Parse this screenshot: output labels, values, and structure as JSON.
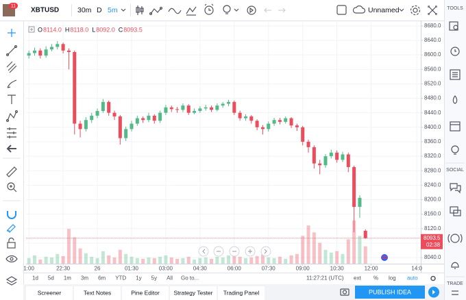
{
  "toolbar": {
    "avatar_badge": "11",
    "symbol": "XBTUSD",
    "intervals": [
      "30m",
      "D",
      "5m"
    ],
    "layout_name": "Unnamed"
  },
  "right_sidebar": {
    "sections": [
      "TOOLS",
      "SOCIAL",
      "TRADE"
    ]
  },
  "bottom_bar": {
    "ranges": [
      "1d",
      "5d",
      "1m",
      "3m",
      "6m",
      "YTD",
      "1y",
      "5y",
      "All"
    ],
    "goto": "Go to...",
    "clock": "11:27:21 (UTC)",
    "options": [
      "ext",
      "%",
      "log",
      "auto"
    ]
  },
  "tabs": [
    "Screener",
    "Text Notes",
    "Pine Editor",
    "Strategy Tester",
    "Trading Panel"
  ],
  "publish_button": "PUBLISH IDEA",
  "chart_data": {
    "type": "candlestick",
    "ohlc_legend": [
      {
        "label": "O",
        "value": "8114.0"
      },
      {
        "label": "H",
        "value": "8118.0"
      },
      {
        "label": "L",
        "value": "8092.0"
      },
      {
        "label": "C",
        "value": "8093.5"
      }
    ],
    "up_color": "#53b987",
    "down_color": "#eb4d5c",
    "open": [
      8598,
      8605,
      8612,
      8598,
      8615,
      8622,
      8630,
      8612,
      8608,
      8410,
      8395,
      8420,
      8432,
      8445,
      8470,
      8440,
      8430,
      8370,
      8395,
      8410,
      8425,
      8420,
      8432,
      8418,
      8440,
      8455,
      8450,
      8448,
      8460,
      8440,
      8445,
      8452,
      8455,
      8448,
      8460,
      8465,
      8470,
      8440,
      8425,
      8430,
      8418,
      8400,
      8395,
      8410,
      8420,
      8415,
      8425,
      8405,
      8400,
      8360,
      8345,
      8300,
      8295,
      8320,
      8330,
      8310,
      8325,
      8290,
      8180,
      8114
    ],
    "high": [
      8612,
      8620,
      8618,
      8624,
      8630,
      8638,
      8634,
      8618,
      8612,
      8418,
      8428,
      8440,
      8452,
      8478,
      8474,
      8446,
      8434,
      8402,
      8418,
      8432,
      8430,
      8440,
      8436,
      8446,
      8462,
      8460,
      8456,
      8466,
      8464,
      8452,
      8458,
      8462,
      8460,
      8466,
      8470,
      8476,
      8474,
      8446,
      8436,
      8434,
      8422,
      8406,
      8416,
      8426,
      8426,
      8430,
      8428,
      8410,
      8404,
      8366,
      8350,
      8310,
      8326,
      8338,
      8336,
      8332,
      8330,
      8294,
      8212,
      8118
    ],
    "low": [
      8590,
      8598,
      8590,
      8592,
      8610,
      8615,
      8604,
      8560,
      8380,
      8372,
      8388,
      8412,
      8425,
      8440,
      8432,
      8420,
      8352,
      8362,
      8388,
      8404,
      8412,
      8414,
      8410,
      8412,
      8434,
      8442,
      8440,
      8442,
      8434,
      8436,
      8440,
      8446,
      8442,
      8444,
      8454,
      8458,
      8434,
      8418,
      8418,
      8410,
      8392,
      8380,
      8388,
      8404,
      8408,
      8410,
      8398,
      8390,
      8350,
      8330,
      8286,
      8270,
      8288,
      8314,
      8302,
      8304,
      8276,
      8110,
      8150,
      8092
    ],
    "close": [
      8605,
      8612,
      8598,
      8615,
      8622,
      8630,
      8612,
      8608,
      8410,
      8395,
      8420,
      8432,
      8445,
      8470,
      8440,
      8430,
      8370,
      8395,
      8410,
      8425,
      8420,
      8432,
      8418,
      8440,
      8455,
      8450,
      8448,
      8460,
      8440,
      8445,
      8452,
      8455,
      8448,
      8460,
      8465,
      8470,
      8440,
      8425,
      8430,
      8418,
      8400,
      8395,
      8410,
      8420,
      8415,
      8425,
      8405,
      8400,
      8360,
      8345,
      8300,
      8295,
      8320,
      8330,
      8310,
      8325,
      8290,
      8180,
      8205,
      8093.5
    ],
    "volume": [
      8,
      12,
      6,
      10,
      9,
      14,
      11,
      50,
      38,
      22,
      15,
      10,
      8,
      18,
      12,
      9,
      20,
      14,
      10,
      8,
      7,
      9,
      8,
      10,
      12,
      9,
      7,
      8,
      10,
      6,
      8,
      9,
      7,
      10,
      9,
      12,
      14,
      10,
      8,
      9,
      11,
      13,
      9,
      8,
      10,
      7,
      12,
      14,
      40,
      55,
      45,
      30,
      20,
      16,
      18,
      14,
      35,
      62,
      40,
      25
    ],
    "last_price_label": "8093.5",
    "countdown": "02:38",
    "xlim": [
      -0.5,
      68.7
    ],
    "xticks": [
      {
        "value": 0,
        "label": "1:00"
      },
      {
        "value": 6,
        "label": "22:30"
      },
      {
        "value": 12,
        "label": "26"
      },
      {
        "value": 18,
        "label": "01:30"
      },
      {
        "value": 24,
        "label": "03:00"
      },
      {
        "value": 30,
        "label": "04:30"
      },
      {
        "value": 36,
        "label": "06:00"
      },
      {
        "value": 42,
        "label": "07:30"
      },
      {
        "value": 48,
        "label": "09:00"
      },
      {
        "value": 54,
        "label": "10:30"
      },
      {
        "value": 60,
        "label": "12:00"
      },
      {
        "value": 68,
        "label": "14:0"
      }
    ],
    "ylim": [
      8023,
      8693
    ],
    "yticks": [
      {
        "value": 8040,
        "label": "8040.0"
      },
      {
        "value": 8080,
        "label": "8080.0"
      },
      {
        "value": 8120,
        "label": "8120.0"
      },
      {
        "value": 8160,
        "label": "8160.0"
      },
      {
        "value": 8200,
        "label": "8200.0"
      },
      {
        "value": 8240,
        "label": "8240.0"
      },
      {
        "value": 8280,
        "label": "8280.0"
      },
      {
        "value": 8320,
        "label": "8320.0"
      },
      {
        "value": 8360,
        "label": "8360.0"
      },
      {
        "value": 8400,
        "label": "8400.0"
      },
      {
        "value": 8440,
        "label": "8440.0"
      },
      {
        "value": 8480,
        "label": "8480.0"
      },
      {
        "value": 8520,
        "label": "8520.0"
      },
      {
        "value": 8560,
        "label": "8560.0"
      },
      {
        "value": 8600,
        "label": "8600.0"
      },
      {
        "value": 8640,
        "label": "8640.0"
      },
      {
        "value": 8680,
        "label": "8680.0"
      }
    ],
    "grid": true
  }
}
